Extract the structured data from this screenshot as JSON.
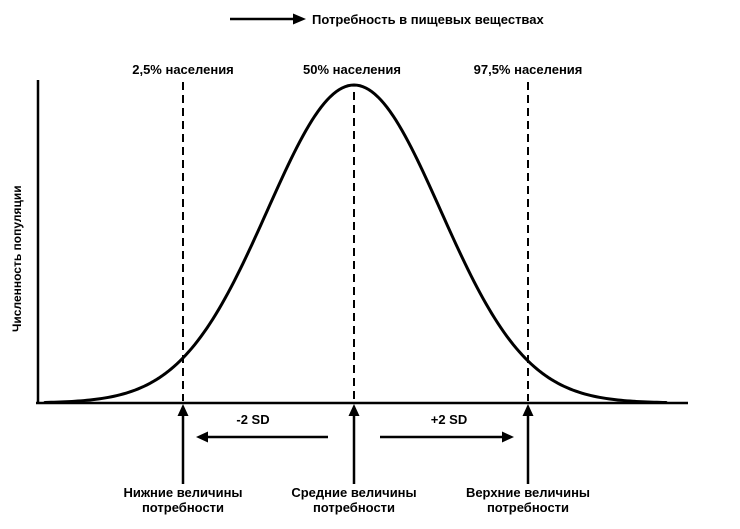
{
  "chart_data": {
    "type": "line",
    "subtype": "normal-distribution-curve",
    "title": "",
    "xlabel": "Потребность в пищевых веществах",
    "ylabel": "Численность популяции",
    "grid": false,
    "legend": false,
    "axes_numeric_ticks": false,
    "curve": {
      "distribution": "gaussian",
      "mean": 0,
      "sd": 1,
      "x_range": [
        -3.6,
        3.6
      ],
      "peak_at": "50% населения"
    },
    "markers": [
      {
        "x_sd": -2,
        "population_percent": "2,5% населения",
        "requirement_label": "Нижние величины потребности"
      },
      {
        "x_sd": 0,
        "population_percent": "50% населения",
        "requirement_label": "Средние величины потребности"
      },
      {
        "x_sd": 2,
        "population_percent": "97,5% населения",
        "requirement_label": "Верхние величины потребности"
      }
    ],
    "annotations": [
      {
        "text": "-2 SD",
        "between": [
          -2,
          0
        ]
      },
      {
        "text": "+2 SD",
        "between": [
          0,
          2
        ]
      }
    ]
  },
  "colors": {
    "ink": "#000000",
    "background": "#ffffff"
  }
}
